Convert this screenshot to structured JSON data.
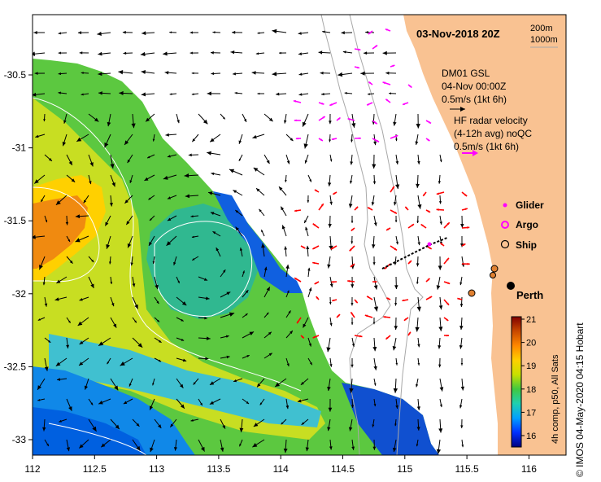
{
  "map": {
    "title": "03-Nov-2018 20Z",
    "lon_ticks": [
      "112",
      "112.5",
      "113",
      "113.5",
      "114",
      "114.5",
      "115",
      "115.5",
      "116"
    ],
    "lat_ticks": [
      "-30.5",
      "-31",
      "-31.5",
      "-32",
      "-32.5",
      "-33"
    ],
    "lon_range": [
      112.0,
      116.3
    ],
    "lat_range": [
      -30.2,
      -33.1
    ],
    "colors": {
      "land": "#f9c292",
      "ocean": "#ffffff",
      "model_arrow": "#000000",
      "radar_arrow": "#ff00ff",
      "radar_arrow_south": "#ff0000",
      "glider_track": "#000000"
    }
  },
  "bathymetry_legend": {
    "line1": "200m",
    "line2": "1000m"
  },
  "model_legend": {
    "name": "DM01 GSL",
    "time": "04-Nov 00:00Z",
    "scale": "0.5m/s (1kt 6h)"
  },
  "radar_legend": {
    "name": "HF radar velocity",
    "avg": "(4-12h avg) noQC",
    "scale": "0.5m/s (1kt 6h)"
  },
  "platform_legend": {
    "glider": "Glider",
    "argo": "Argo",
    "ship": "Ship"
  },
  "city": {
    "name": "Perth",
    "lon": 115.86,
    "lat": -31.95
  },
  "colorbar": {
    "ticks": [
      "21",
      "20",
      "19",
      "18",
      "17",
      "16"
    ],
    "title": "4h comp, p50, All Sats",
    "stops": [
      "#000080",
      "#0030ff",
      "#00a0ff",
      "#20d0b0",
      "#40c840",
      "#c8e000",
      "#ffd000",
      "#ff8800",
      "#c84800",
      "#800000"
    ]
  },
  "credit": "© IMOS 04-May-2020 04:15 Hobart"
}
